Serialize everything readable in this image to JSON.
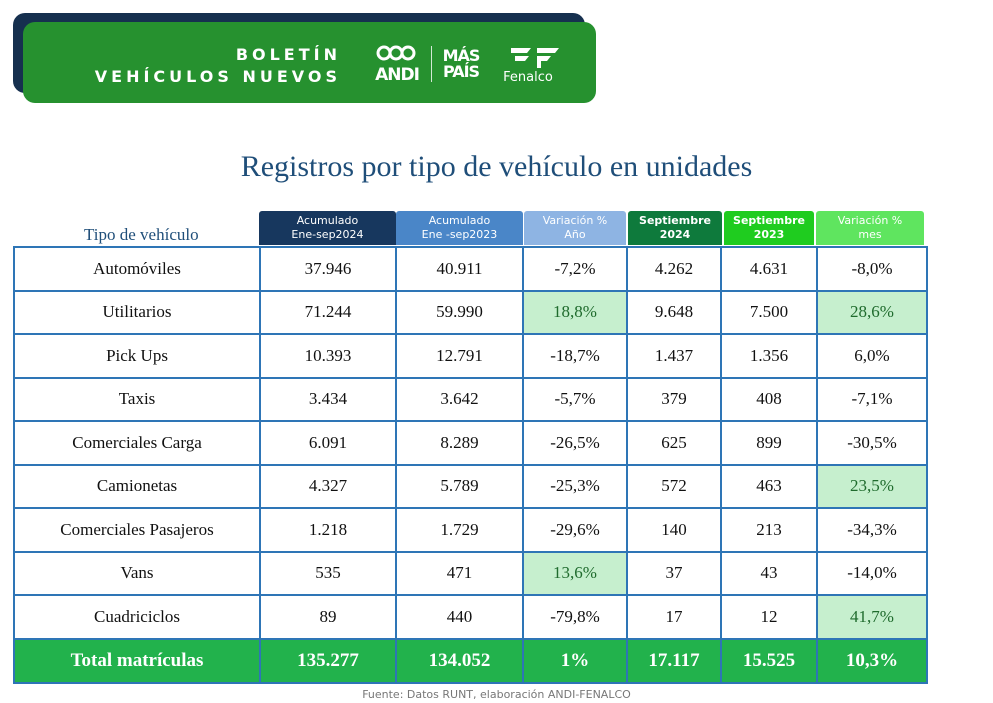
{
  "banner": {
    "title_line1": "BOLETÍN",
    "title_line2": "VEHÍCULOS NUEVOS",
    "logo_andi": "ANDI",
    "logo_mas": "MÁS",
    "logo_pais": "PAÍS",
    "logo_fenalco": "Fenalco"
  },
  "title": "Registros por tipo de vehículo en unidades",
  "table": {
    "row_header": "Tipo de vehículo",
    "columns": [
      {
        "line1": "Acumulado",
        "line2": "Ene-sep2024",
        "color": "#17375e"
      },
      {
        "line1": "Acumulado",
        "line2": "Ene -sep2023",
        "color": "#4a86c8"
      },
      {
        "line1": "Variación %",
        "line2": "Año",
        "color": "#8eb4e3"
      },
      {
        "line1": "Septiembre",
        "line2": "2024",
        "color": "#0e7a3c"
      },
      {
        "line1": "Septiembre",
        "line2": "2023",
        "color": "#1fcc1f"
      },
      {
        "line1": "Variación %",
        "line2": "mes",
        "color": "#5fe55f"
      }
    ],
    "rows": [
      {
        "label": "Automóviles",
        "cells": [
          "37.946",
          "40.911",
          "-7,2%",
          "4.262",
          "4.631",
          "-8,0%"
        ]
      },
      {
        "label": "Utilitarios",
        "cells": [
          "71.244",
          "59.990",
          "18,8%",
          "9.648",
          "7.500",
          "28,6%"
        ]
      },
      {
        "label": "Pick Ups",
        "cells": [
          "10.393",
          "12.791",
          "-18,7%",
          "1.437",
          "1.356",
          "6,0%"
        ]
      },
      {
        "label": "Taxis",
        "cells": [
          "3.434",
          "3.642",
          "-5,7%",
          "379",
          "408",
          "-7,1%"
        ]
      },
      {
        "label": "Comerciales Carga",
        "cells": [
          "6.091",
          "8.289",
          "-26,5%",
          "625",
          "899",
          "-30,5%"
        ]
      },
      {
        "label": "Camionetas",
        "cells": [
          "4.327",
          "5.789",
          "-25,3%",
          "572",
          "463",
          "23,5%"
        ]
      },
      {
        "label": "Comerciales Pasajeros",
        "cells": [
          "1.218",
          "1.729",
          "-29,6%",
          "140",
          "213",
          "-34,3%"
        ]
      },
      {
        "label": "Vans",
        "cells": [
          "535",
          "471",
          "13,6%",
          "37",
          "43",
          "-14,0%"
        ]
      },
      {
        "label": "Cuadriciclos",
        "cells": [
          "89",
          "440",
          "-79,8%",
          "17",
          "12",
          "41,7%"
        ]
      }
    ],
    "total": {
      "label": "Total matrículas",
      "cells": [
        "135.277",
        "134.052",
        "1%",
        "17.117",
        "15.525",
        "10,3%"
      ]
    },
    "highlight_color": "#c6efce",
    "total_color": "#22b24c"
  },
  "source": "Fuente: Datos RUNT, elaboración ANDI-FENALCO"
}
